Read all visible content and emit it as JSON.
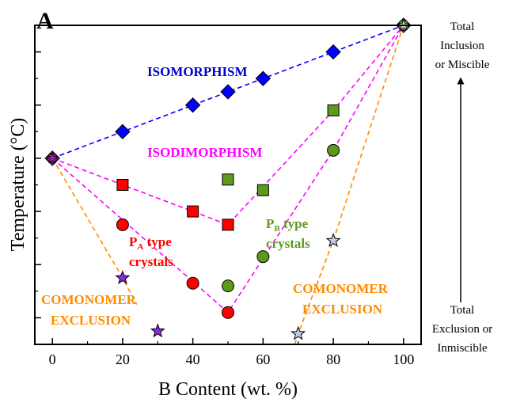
{
  "panel_label": "A",
  "chart_data": {
    "type": "scatter",
    "xlabel": "B Content (wt. %)",
    "ylabel": "Temperature (°C)",
    "xlim": [
      -5,
      105
    ],
    "ylim": [
      0,
      12
    ],
    "x_ticks": [
      0,
      20,
      40,
      60,
      80,
      100
    ],
    "y_ticks_unlabeled": [
      1,
      3,
      5,
      7,
      9,
      11
    ],
    "y_minor": [
      0,
      2,
      4,
      6,
      8,
      10,
      12
    ],
    "grid": false,
    "series": [
      {
        "key": "isomorphism",
        "marker": "diamond",
        "color": "#0000ff",
        "points": [
          [
            0,
            7
          ],
          [
            20,
            8
          ],
          [
            40,
            9
          ],
          [
            50,
            9.5
          ],
          [
            60,
            10
          ],
          [
            80,
            11
          ],
          [
            100,
            12
          ]
        ]
      },
      {
        "key": "pa_squares",
        "marker": "square",
        "color": "#ff0000",
        "points": [
          [
            20,
            6
          ],
          [
            40,
            5
          ],
          [
            50,
            4.5
          ]
        ]
      },
      {
        "key": "pb_squares",
        "marker": "square",
        "color": "#5b9a1b",
        "points": [
          [
            50,
            6.2
          ],
          [
            60,
            5.8
          ],
          [
            80,
            8.8
          ]
        ]
      },
      {
        "key": "pa_circles",
        "marker": "circle",
        "color": "#ff0000",
        "points": [
          [
            20,
            4.5
          ],
          [
            40,
            2.3
          ],
          [
            50,
            1.2
          ]
        ]
      },
      {
        "key": "pb_circles",
        "marker": "circle",
        "color": "#5b9a1b",
        "points": [
          [
            50,
            2.2
          ],
          [
            60,
            3.3
          ],
          [
            80,
            7.3
          ]
        ]
      },
      {
        "key": "purple_stars",
        "marker": "star",
        "color": "#8a2be2",
        "points": [
          [
            20,
            2.5
          ],
          [
            30,
            0.5
          ]
        ]
      },
      {
        "key": "lavender_stars",
        "marker": "star",
        "color": "#c9c9ec",
        "points": [
          [
            70,
            0.4
          ],
          [
            80,
            3.9
          ]
        ]
      }
    ],
    "endpoints": {
      "left": {
        "x": 0,
        "y": 7,
        "color": "#a020a0"
      },
      "right": {
        "x": 100,
        "y": 12,
        "color": "#6b8e23"
      }
    },
    "dashed_lines": [
      {
        "color": "#0000ff",
        "points": [
          [
            0,
            7
          ],
          [
            20,
            8
          ],
          [
            40,
            9
          ],
          [
            50,
            9.5
          ],
          [
            60,
            10
          ],
          [
            80,
            11
          ],
          [
            100,
            12
          ]
        ]
      },
      {
        "color": "#ff00ff",
        "points": [
          [
            0,
            7
          ],
          [
            20,
            6
          ],
          [
            40,
            5
          ],
          [
            50,
            4.5
          ],
          [
            80,
            8.8
          ],
          [
            100,
            12
          ]
        ]
      },
      {
        "color": "#ff00ff",
        "points": [
          [
            0,
            7
          ],
          [
            50,
            1.2
          ],
          [
            80,
            7.3
          ],
          [
            100,
            12
          ]
        ]
      },
      {
        "color": "#ff8c00",
        "points": [
          [
            0,
            7
          ],
          [
            20,
            2.5
          ],
          [
            24,
            1.5
          ]
        ]
      },
      {
        "color": "#ff8c00",
        "points": [
          [
            100,
            12
          ],
          [
            80,
            3.9
          ],
          [
            70,
            0.4
          ],
          [
            69,
            0
          ]
        ]
      }
    ],
    "annotations": {
      "isomorphism": {
        "text": "ISOMORPHISM",
        "color": "#0000cc"
      },
      "isodimorphism": {
        "text": "ISODIMORPHISM",
        "color": "#ff00ff"
      },
      "pa_label": {
        "line1_main": "P",
        "line1_sub": "A",
        "line1_rest": " type",
        "line2": "crystals",
        "color": "#ff0000"
      },
      "pb_label": {
        "line1_main": "P",
        "line1_sub": "B",
        "line1_rest": " type",
        "line2": "crystals",
        "color": "#5b9a1b"
      },
      "exclusion_left": {
        "line1": "COMONOMER",
        "line2": "EXCLUSION",
        "color": "#ff8c00"
      },
      "exclusion_right": {
        "line1": "COMONOMER",
        "line2": "EXCLUSION",
        "color": "#ff8c00"
      }
    }
  },
  "side_labels": {
    "top": [
      "Total",
      "Inclusion",
      "or Miscible"
    ],
    "bottom": [
      "Total",
      "Exclusion or",
      "Inmiscible"
    ]
  }
}
